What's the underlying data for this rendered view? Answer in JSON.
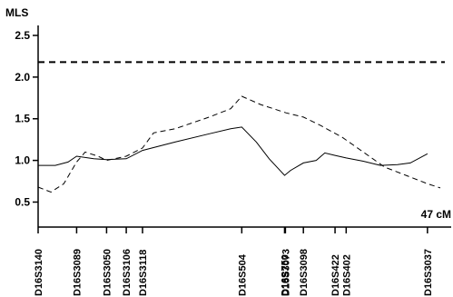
{
  "chart_data": {
    "type": "line",
    "ylabel": "MLS",
    "xlabel": "",
    "ylim": [
      0.2,
      2.62
    ],
    "xlim": [
      0,
      47
    ],
    "yticks": [
      0.5,
      1.0,
      1.5,
      2.0,
      2.5
    ],
    "ytick_labels": [
      "0.5",
      "1.0",
      "1.5",
      "2.0",
      "2.5"
    ],
    "grid": false,
    "x_end_label": "47 cM",
    "threshold": 2.18,
    "markers": [
      {
        "name": "D16S3140",
        "cM": 0.0
      },
      {
        "name": "D16S3089",
        "cM": 4.5
      },
      {
        "name": "D16S3050",
        "cM": 8.0
      },
      {
        "name": "D16S3106",
        "cM": 10.3
      },
      {
        "name": "D16S3118",
        "cM": 12.2
      },
      {
        "name": "D16S504",
        "cM": 23.8
      },
      {
        "name": "D16S750",
        "cM": 28.8
      },
      {
        "name": "D16S3073",
        "cM": 28.9
      },
      {
        "name": "D16S3098",
        "cM": 31.0
      },
      {
        "name": "D16S422",
        "cM": 34.7
      },
      {
        "name": "D16S402",
        "cM": 36.0
      },
      {
        "name": "D16S3037",
        "cM": 45.5
      }
    ],
    "series": [
      {
        "style": "solid",
        "x": [
          0,
          2.0,
          3.5,
          4.5,
          6.5,
          8.0,
          10.3,
          12.2,
          16.0,
          20.0,
          22.5,
          23.8,
          25.5,
          27.0,
          28.8,
          29.5,
          31.0,
          32.5,
          33.5,
          34.7,
          36.0,
          38.0,
          40.0,
          42.0,
          43.5,
          45.5
        ],
        "y": [
          0.94,
          0.94,
          0.98,
          1.05,
          1.02,
          1.01,
          1.02,
          1.12,
          1.22,
          1.32,
          1.38,
          1.4,
          1.22,
          1.02,
          0.82,
          0.88,
          0.97,
          1.0,
          1.09,
          1.06,
          1.03,
          0.99,
          0.94,
          0.95,
          0.97,
          1.08
        ]
      },
      {
        "style": "dashed",
        "x": [
          0,
          1.5,
          3.0,
          4.5,
          5.5,
          7.0,
          8.0,
          10.3,
          12.2,
          13.5,
          16.0,
          20.0,
          22.5,
          23.8,
          26.0,
          29.0,
          31.0,
          33.0,
          35.5,
          38.0,
          40.5,
          43.0,
          45.5,
          47.0
        ],
        "y": [
          0.68,
          0.62,
          0.72,
          0.98,
          1.1,
          1.05,
          1.0,
          1.05,
          1.15,
          1.33,
          1.38,
          1.52,
          1.62,
          1.77,
          1.67,
          1.57,
          1.52,
          1.42,
          1.28,
          1.1,
          0.92,
          0.82,
          0.72,
          0.67
        ]
      }
    ]
  }
}
